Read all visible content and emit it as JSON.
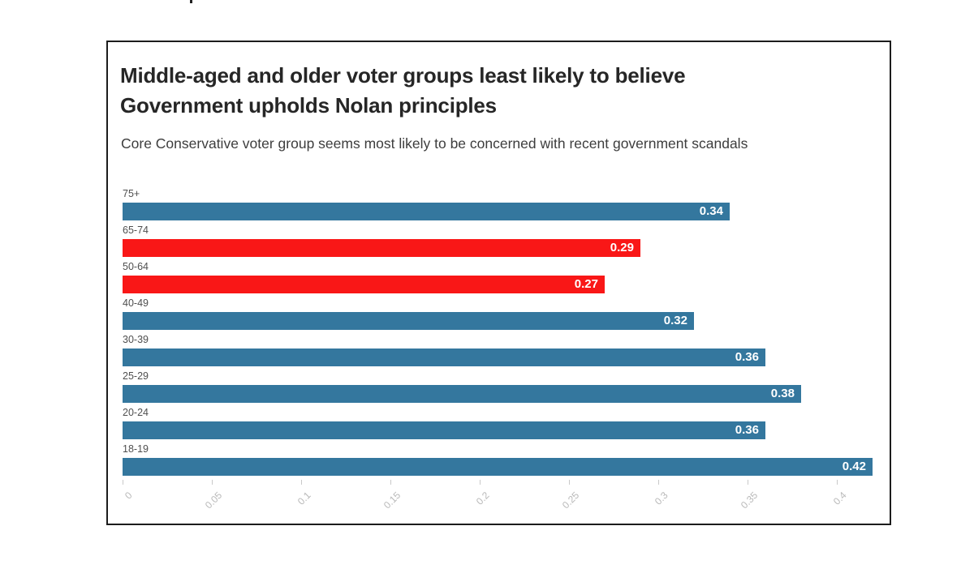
{
  "header": {
    "title": "Middle-aged and older voter groups least likely to believe Government upholds Nolan principles",
    "subtitle": "Core Conservative voter group seems most likely to be concerned with recent government scandals"
  },
  "colors": {
    "bar_blue": "#34779e",
    "bar_red": "#f91717",
    "title_text": "#262626",
    "subtitle_text": "#3d3d3d",
    "category_text": "#4f4f4f",
    "tick_text": "#b9b9b9",
    "frame_border": "#1c1c1c"
  },
  "chart_data": {
    "type": "bar",
    "orientation": "horizontal",
    "title": "Middle-aged and older voter groups least likely to believe Government upholds Nolan principles",
    "subtitle": "Core Conservative voter group seems most likely to be concerned with recent government scandals",
    "categories": [
      "75+",
      "65-74",
      "50-64",
      "40-49",
      "30-39",
      "25-29",
      "20-24",
      "18-19"
    ],
    "values": [
      0.34,
      0.29,
      0.27,
      0.32,
      0.36,
      0.38,
      0.36,
      0.42
    ],
    "value_labels": [
      "0.34",
      "0.29",
      "0.27",
      "0.32",
      "0.36",
      "0.38",
      "0.36",
      "0.42"
    ],
    "bar_colors": [
      "#34779e",
      "#f91717",
      "#f91717",
      "#34779e",
      "#34779e",
      "#34779e",
      "#34779e",
      "#34779e"
    ],
    "x_ticks": [
      0,
      0.05,
      0.1,
      0.15,
      0.2,
      0.25,
      0.3,
      0.35,
      0.4
    ],
    "x_tick_labels": [
      "0",
      "0.05",
      "0.1",
      "0.15",
      "0.2",
      "0.25",
      "0.3",
      "0.35",
      "0.4"
    ],
    "xlim": [
      0,
      0.425
    ],
    "xlabel": "",
    "ylabel": "",
    "grid": false,
    "legend": false,
    "value_label_position": "inside-end",
    "value_label_color": "#ffffff"
  }
}
